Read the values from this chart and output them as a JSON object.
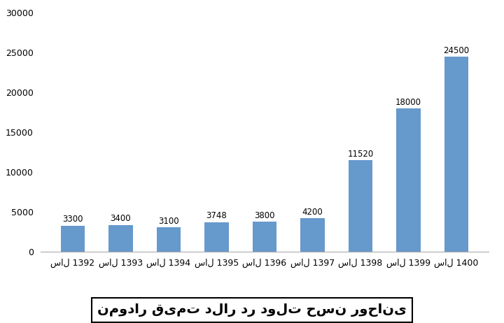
{
  "years": [
    "سال 1392",
    "سال 1393",
    "سال 1394",
    "سال 1395",
    "سال 1396",
    "سال 1397",
    "سال 1398",
    "سال 1399",
    "سال 1400"
  ],
  "values": [
    3300,
    3400,
    3100,
    3748,
    3800,
    4200,
    11520,
    18000,
    24500
  ],
  "labels": [
    "3300",
    "3400",
    "3100",
    "3748",
    "3800",
    "4200",
    "11520",
    "18000",
    "24500"
  ],
  "bar_color": "#6699CC",
  "background_color": "#FFFFFF",
  "ylim": [
    0,
    30000
  ],
  "yticks": [
    0,
    5000,
    10000,
    15000,
    20000,
    25000,
    30000
  ],
  "title": "نمودار قیمت دلار در دولت حسن روحانی",
  "title_fontsize": 14,
  "label_fontsize": 8.5,
  "tick_fontsize": 9,
  "fig_width": 7.2,
  "fig_height": 4.62
}
